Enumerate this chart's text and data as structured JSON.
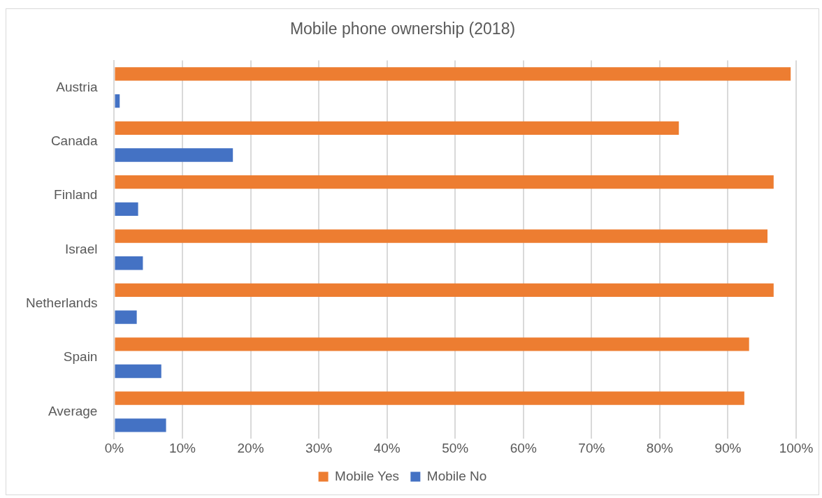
{
  "chart_data": {
    "type": "bar",
    "orientation": "horizontal",
    "title": "Mobile phone ownership (2018)",
    "categories": [
      "Austria",
      "Canada",
      "Finland",
      "Israel",
      "Netherlands",
      "Spain",
      "Average"
    ],
    "series": [
      {
        "name": "Mobile Yes",
        "color": "#ed7d31",
        "values": [
          99.2,
          82.8,
          96.7,
          95.8,
          96.7,
          93.1,
          92.4
        ]
      },
      {
        "name": "Mobile No",
        "color": "#4472c4",
        "values": [
          0.8,
          17.4,
          3.5,
          4.2,
          3.3,
          6.9,
          7.6
        ]
      }
    ],
    "xlim": [
      0,
      100
    ],
    "xticks": [
      {
        "value": 0,
        "label": "0%"
      },
      {
        "value": 10,
        "label": "10%"
      },
      {
        "value": 20,
        "label": "20%"
      },
      {
        "value": 30,
        "label": "30%"
      },
      {
        "value": 40,
        "label": "40%"
      },
      {
        "value": 50,
        "label": "50%"
      },
      {
        "value": 60,
        "label": "60%"
      },
      {
        "value": 70,
        "label": "70%"
      },
      {
        "value": 80,
        "label": "80%"
      },
      {
        "value": 90,
        "label": "90%"
      },
      {
        "value": 100,
        "label": "100%"
      }
    ],
    "grid": "x",
    "legend": "bottom"
  }
}
